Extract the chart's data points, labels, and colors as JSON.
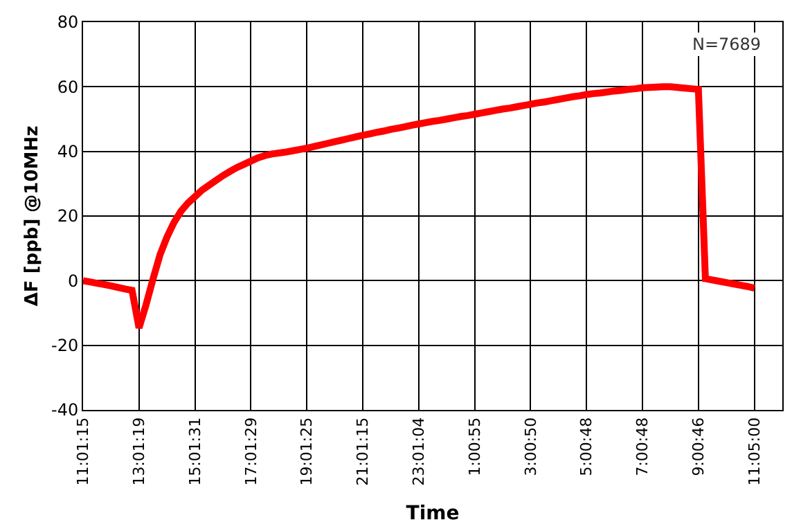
{
  "chart_data": {
    "type": "line",
    "xlabel": "Time",
    "ylabel": "ΔF [ppb] @10MHz",
    "annotations": [
      "N=7689"
    ],
    "categories": [
      "11:01:15",
      null,
      null,
      null,
      null,
      null,
      null,
      null,
      "13:01:19",
      null,
      null,
      null,
      null,
      null,
      null,
      null,
      "15:01:31",
      null,
      null,
      null,
      null,
      null,
      null,
      null,
      "17:01:29",
      null,
      null,
      null,
      null,
      null,
      null,
      null,
      "19:01:25",
      null,
      null,
      null,
      null,
      null,
      null,
      null,
      "21:01:15",
      null,
      null,
      null,
      null,
      null,
      null,
      null,
      "23:01:04",
      null,
      null,
      null,
      null,
      null,
      null,
      null,
      "1:00:55",
      null,
      null,
      null,
      null,
      null,
      null,
      null,
      "3:00:50",
      null,
      null,
      null,
      null,
      null,
      null,
      null,
      "5:00:48",
      null,
      null,
      null,
      null,
      null,
      null,
      null,
      "7:00:48",
      null,
      null,
      null,
      null,
      null,
      null,
      null,
      "9:00:46",
      null,
      null,
      null,
      null,
      null,
      null,
      null,
      "11:05:00"
    ],
    "series": [
      {
        "color": "#ff0000",
        "values": [
          0,
          -0.4,
          -0.8,
          -1.2,
          -1.6,
          -2.1,
          -2.6,
          -3,
          -14.6,
          -7.5,
          0.5,
          8,
          13.5,
          18,
          21.5,
          24,
          26,
          28,
          29.5,
          31,
          32.5,
          33.8,
          35,
          36,
          37,
          38,
          38.7,
          39.2,
          39.5,
          39.8,
          40.2,
          40.6,
          41,
          41.5,
          42,
          42.5,
          43,
          43.5,
          44,
          44.5,
          45,
          45.4,
          45.9,
          46.3,
          46.8,
          47.2,
          47.6,
          48.1,
          48.5,
          48.9,
          49.3,
          49.6,
          50,
          50.4,
          50.8,
          51.1,
          51.5,
          51.9,
          52.3,
          52.7,
          53.1,
          53.4,
          53.8,
          54.2,
          54.6,
          55,
          55.3,
          55.7,
          56.1,
          56.5,
          56.9,
          57.2,
          57.6,
          57.9,
          58.1,
          58.4,
          58.7,
          58.9,
          59.2,
          59.4,
          59.7,
          59.8,
          59.9,
          60,
          60,
          59.8,
          59.6,
          59.4,
          59.2,
          0.6,
          0.2,
          -0.2,
          -0.6,
          -1,
          -1.4,
          -1.8,
          -2.3
        ]
      }
    ],
    "ylim": [
      -40,
      80
    ],
    "yticks": [
      -40,
      -20,
      0,
      20,
      40,
      60,
      80
    ],
    "grid": true,
    "marker": "none",
    "line_style": "solid"
  }
}
